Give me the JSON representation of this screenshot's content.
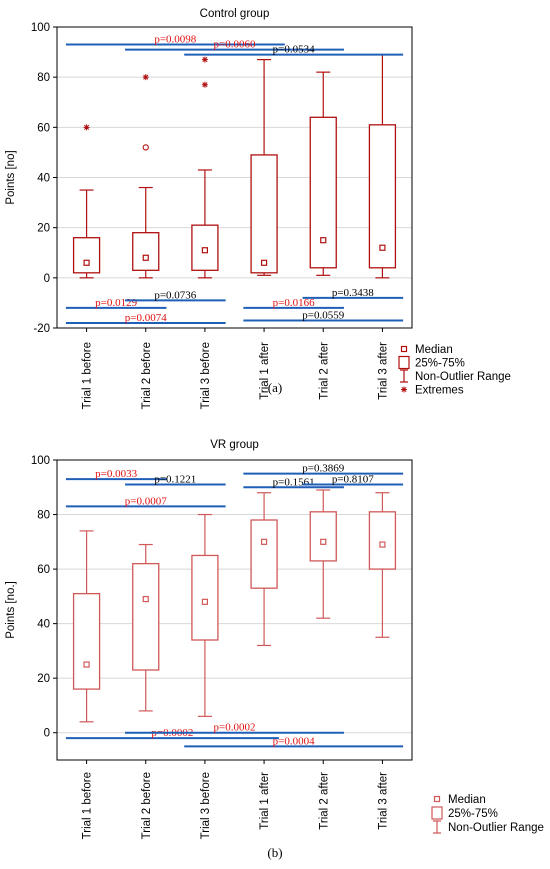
{
  "colors": {
    "box": "#b01010",
    "box_light": "#d05858",
    "bar": "#1f5fb8",
    "p_red": "#e01010",
    "p_black": "#000000",
    "grid": "#d8d8d8",
    "frame": "#000000"
  },
  "chart_data": [
    {
      "type": "box",
      "title": "Control group",
      "ylabel": "Points [no]",
      "xlabel": "",
      "ylim": [
        -20,
        100
      ],
      "yticks": [
        -20,
        0,
        20,
        40,
        60,
        80,
        100
      ],
      "grid": true,
      "legend_position": "bottom-right, outside plot",
      "legend": [
        "Median",
        "25%-75%",
        "Non-Outlier Range",
        "Extremes"
      ],
      "caption": "(a)",
      "categories": [
        "Trial 1 before",
        "Trial 2 before",
        "Trial 3 before",
        "Trial 1 after",
        "Trial 2 after",
        "Trial 3 after"
      ],
      "boxes": [
        {
          "min": 0,
          "q1": 2,
          "median": 6,
          "q3": 16,
          "max": 35,
          "outliers": [],
          "extremes": [
            60
          ]
        },
        {
          "min": 0,
          "q1": 3,
          "median": 8,
          "q3": 18,
          "max": 36,
          "outliers": [
            52
          ],
          "extremes": [
            80
          ]
        },
        {
          "min": 0,
          "q1": 3,
          "median": 11,
          "q3": 21,
          "max": 43,
          "outliers": [],
          "extremes": [
            77,
            87
          ]
        },
        {
          "min": 1,
          "q1": 2,
          "median": 6,
          "q3": 49,
          "max": 87,
          "outliers": [],
          "extremes": []
        },
        {
          "min": 1,
          "q1": 4,
          "median": 15,
          "q3": 64,
          "max": 82,
          "outliers": [],
          "extremes": []
        },
        {
          "min": 0,
          "q1": 4,
          "median": 12,
          "q3": 61,
          "max": 89,
          "outliers": [],
          "extremes": []
        }
      ],
      "comparisons": [
        {
          "label": "p=0.0098",
          "color": "red",
          "from": 0,
          "to": 3,
          "y": 93
        },
        {
          "label": "p=0.0060",
          "color": "red",
          "from": 1,
          "to": 4,
          "y": 91
        },
        {
          "label": "p=0.0534",
          "color": "black",
          "from": 2,
          "to": 5,
          "y": 89
        },
        {
          "label": "p=0.0129",
          "color": "red",
          "from": 0,
          "to": 1,
          "y": -12
        },
        {
          "label": "p=0.0736",
          "color": "black",
          "from": 1,
          "to": 2,
          "y": -9
        },
        {
          "label": "p=0.0074",
          "color": "red",
          "from": 0,
          "to": 2,
          "y": -18
        },
        {
          "label": "p=0.0166",
          "color": "red",
          "from": 3,
          "to": 4,
          "y": -12
        },
        {
          "label": "p=0.3438",
          "color": "black",
          "from": 4,
          "to": 5,
          "y": -8
        },
        {
          "label": "p=0.0559",
          "color": "black",
          "from": 3,
          "to": 5,
          "y": -17
        }
      ]
    },
    {
      "type": "box",
      "title": "VR group",
      "ylabel": "Points [no.]",
      "xlabel": "",
      "ylim": [
        -10,
        100
      ],
      "yticks": [
        0,
        20,
        40,
        60,
        80,
        100
      ],
      "grid": true,
      "legend_position": "bottom-right, outside plot",
      "legend": [
        "Median",
        "25%-75%",
        "Non-Outlier Range"
      ],
      "caption": "(b)",
      "categories": [
        "Trial 1 before",
        "Trial 2 before",
        "Trial 3 before",
        "Trial 1 after",
        "Trial 2 after",
        "Trial 3 after"
      ],
      "boxes": [
        {
          "min": 4,
          "q1": 16,
          "median": 25,
          "q3": 51,
          "max": 74,
          "outliers": [],
          "extremes": []
        },
        {
          "min": 8,
          "q1": 23,
          "median": 49,
          "q3": 62,
          "max": 69,
          "outliers": [],
          "extremes": []
        },
        {
          "min": 6,
          "q1": 34,
          "median": 48,
          "q3": 65,
          "max": 80,
          "outliers": [],
          "extremes": []
        },
        {
          "min": 32,
          "q1": 53,
          "median": 70,
          "q3": 78,
          "max": 88,
          "outliers": [],
          "extremes": []
        },
        {
          "min": 42,
          "q1": 63,
          "median": 70,
          "q3": 81,
          "max": 89,
          "outliers": [],
          "extremes": []
        },
        {
          "min": 35,
          "q1": 60,
          "median": 69,
          "q3": 81,
          "max": 88,
          "outliers": [],
          "extremes": []
        }
      ],
      "comparisons": [
        {
          "label": "p=0.0033",
          "color": "red",
          "from": 0,
          "to": 1,
          "y": 93
        },
        {
          "label": "p=0.1221",
          "color": "black",
          "from": 1,
          "to": 2,
          "y": 91
        },
        {
          "label": "p=0.0007",
          "color": "red",
          "from": 0,
          "to": 2,
          "y": 83
        },
        {
          "label": "p=0.3869",
          "color": "black",
          "from": 3,
          "to": 5,
          "y": 95
        },
        {
          "label": "p=0.1561",
          "color": "black",
          "from": 3,
          "to": 4,
          "y": 90
        },
        {
          "label": "p=0.8107",
          "color": "black",
          "from": 4,
          "to": 5,
          "y": 91
        },
        {
          "label": "p=0.0002",
          "color": "red",
          "from": 0,
          "to": 2.9,
          "y": -2
        },
        {
          "label": "p=0.0002",
          "color": "red",
          "from": 1,
          "to": 4,
          "y": 0
        },
        {
          "label": "p=0.0004",
          "color": "red",
          "from": 2,
          "to": 5,
          "y": -5
        }
      ]
    }
  ]
}
